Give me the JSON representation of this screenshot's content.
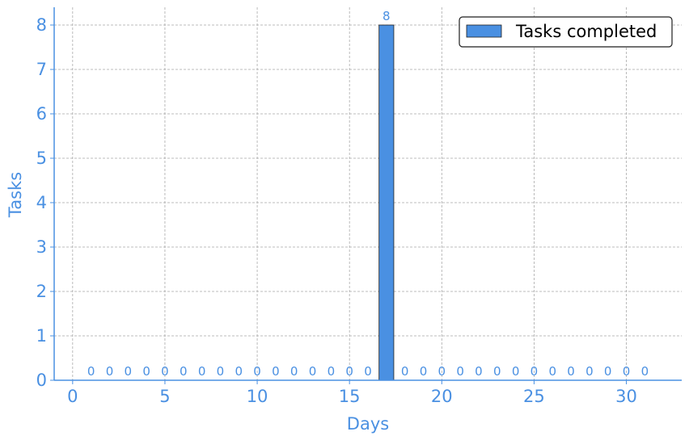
{
  "chart_data": {
    "type": "bar",
    "x": [
      1,
      2,
      3,
      4,
      5,
      6,
      7,
      8,
      9,
      10,
      11,
      12,
      13,
      14,
      15,
      16,
      17,
      18,
      19,
      20,
      21,
      22,
      23,
      24,
      25,
      26,
      27,
      28,
      29,
      30,
      31
    ],
    "values": [
      0,
      0,
      0,
      0,
      0,
      0,
      0,
      0,
      0,
      0,
      0,
      0,
      0,
      0,
      0,
      0,
      8,
      0,
      0,
      0,
      0,
      0,
      0,
      0,
      0,
      0,
      0,
      0,
      0,
      0,
      0
    ],
    "series": [
      {
        "name": "Tasks completed"
      }
    ],
    "xlabel": "Days",
    "ylabel": "Tasks",
    "xlim": [
      -1,
      33
    ],
    "ylim": [
      0,
      8.4
    ],
    "xticks": [
      0,
      5,
      10,
      15,
      20,
      25,
      30
    ],
    "yticks": [
      0,
      1,
      2,
      3,
      4,
      5,
      6,
      7,
      8
    ],
    "grid": true,
    "legend_position": "top-right",
    "colors": {
      "bar": "#4a90e2",
      "bar_edge": "#1f1f1f",
      "axis": "#4a90e2",
      "text": "#4a90e2",
      "grid": "#a9a9a9"
    }
  }
}
